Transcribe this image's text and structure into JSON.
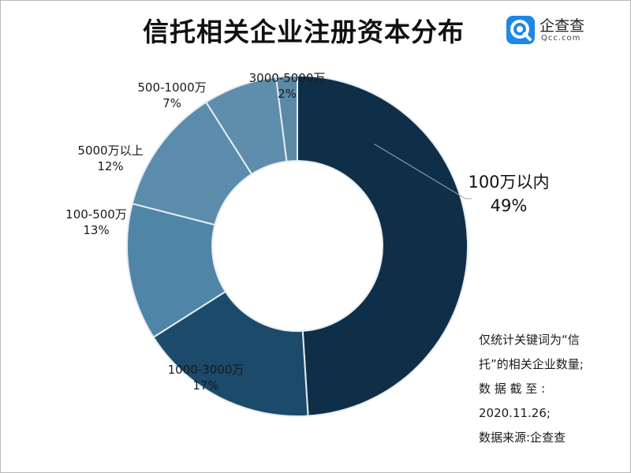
{
  "title": "信托相关企业注册资本分布",
  "logo": {
    "name": "企查查",
    "domain": "Qcc.com"
  },
  "chart_data": {
    "type": "pie",
    "donut": true,
    "slices": [
      {
        "label": "100万以内",
        "value": 49,
        "pct_label": "49%",
        "color": "#0f2e48"
      },
      {
        "label": "1000-3000万",
        "value": 17,
        "pct_label": "17%",
        "color": "#1b4a6b"
      },
      {
        "label": "100-500万",
        "value": 13,
        "pct_label": "13%",
        "color": "#4f85a6"
      },
      {
        "label": "5000万以上",
        "value": 12,
        "pct_label": "12%",
        "color": "#5b8cab"
      },
      {
        "label": "500-1000万",
        "value": 7,
        "pct_label": "7%",
        "color": "#5f8dac"
      },
      {
        "label": "3000-5000万",
        "value": 2,
        "pct_label": "2%",
        "color": "#5b8aa9"
      }
    ]
  },
  "note": {
    "lines": [
      "仅统计关键词为“信",
      "托”的相关企业数量;",
      "数 据 截 至 :",
      "2020.11.26;",
      "数据来源:企查查"
    ]
  }
}
